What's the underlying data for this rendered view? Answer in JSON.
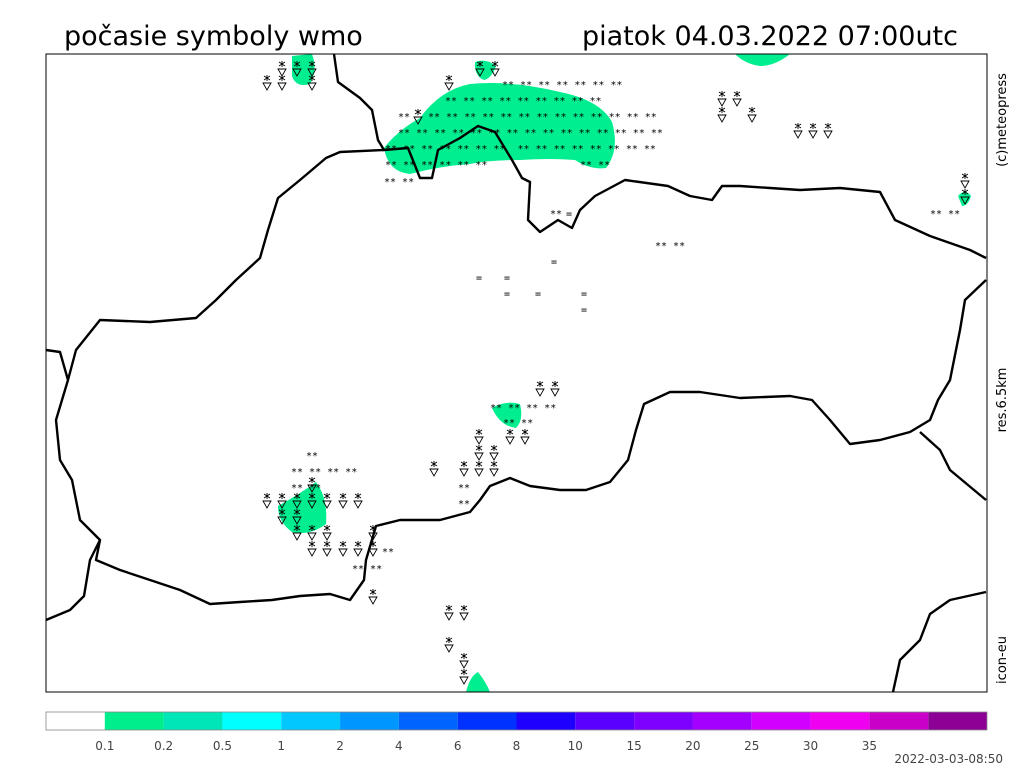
{
  "header": {
    "title": "počasie symboly wmo",
    "datetime": "piatok 04.03.2022 07:00utc"
  },
  "side_labels": {
    "copyright": "(c)meteopress",
    "resolution": "res.6.5km",
    "model": "icon-eu"
  },
  "snow_rows": [
    "** **",
    "** ** ** ** ** ** **",
    "** ** ** ** ** ** ** ** **",
    "**",
    "** ** ** ** ** ** ** ** ** ** ** ** **",
    "** ** ** ** ** ** ** ** ** ** ** ** ** ** **",
    "** ** ** ** ** ** **  ** ** ** ** ** ** ** **",
    "** ** ** ** ** **",
    "** **",
    "**",
    "** **",
    "** **",
    "** ** ** **",
    "** **",
    "**",
    "** ** ** **",
    "** **",
    "**",
    "**",
    "** **",
    "**"
  ],
  "fog": [
    "=",
    "=",
    "=",
    "=",
    "=",
    "=",
    "=",
    "="
  ],
  "colorbar": {
    "colors": [
      "#ffffff",
      "#00ee8c",
      "#00e6b8",
      "#00ffff",
      "#00c8ff",
      "#0096ff",
      "#0064ff",
      "#0032ff",
      "#1e00ff",
      "#5a00ff",
      "#7e00ff",
      "#a400ff",
      "#d200ff",
      "#f000f0",
      "#c800c8",
      "#8c0096"
    ],
    "labels": [
      0.1,
      0.2,
      0.5,
      1,
      2,
      4,
      6,
      8,
      10,
      15,
      20,
      25,
      30,
      35
    ]
  },
  "timestamp": "2022-03-03-08:50"
}
